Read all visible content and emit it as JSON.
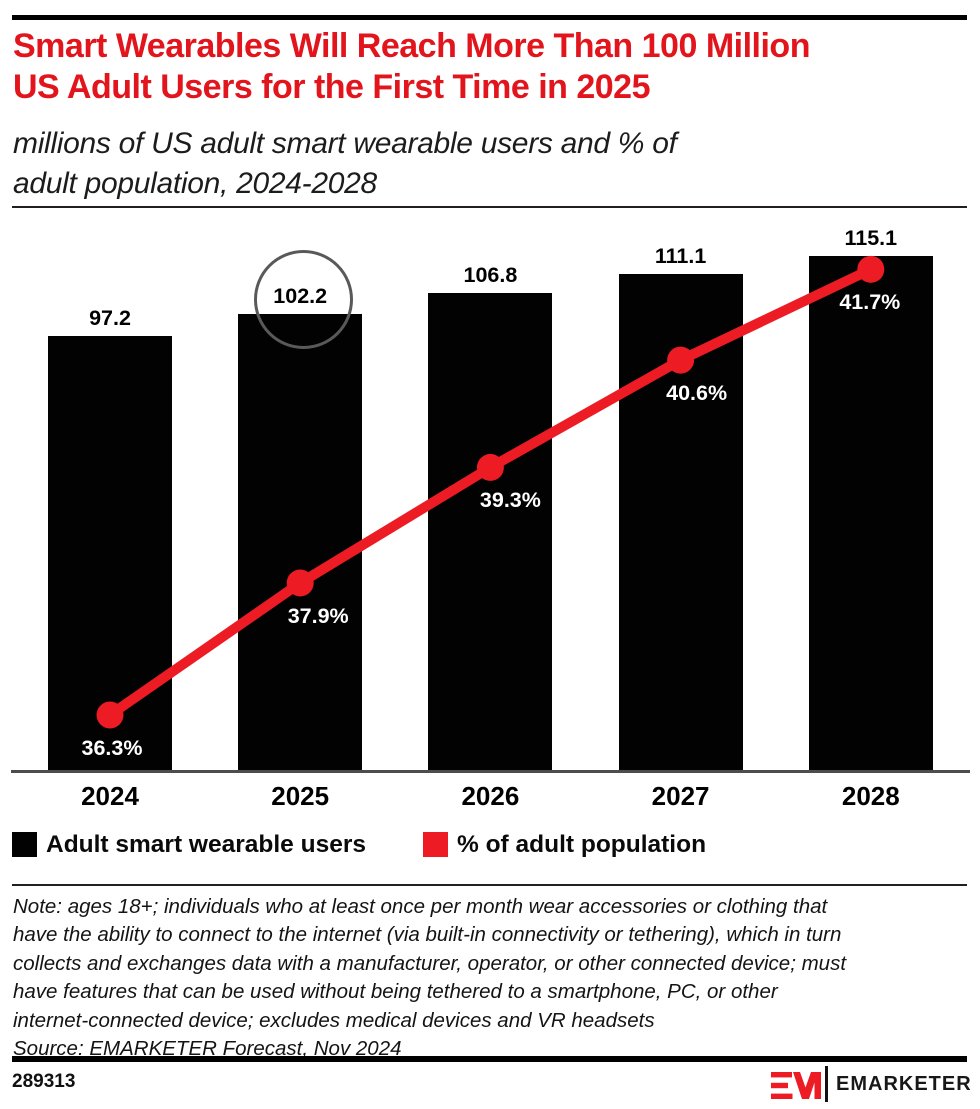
{
  "page": {
    "title_lines": [
      "Smart Wearables Will Reach More Than 100 Million",
      "US Adult Users for the First Time in 2025"
    ],
    "subtitle_lines": [
      "millions of US adult smart wearable users and % of",
      "adult population, 2024-2028"
    ],
    "note_lines": [
      "Note: ages 18+; individuals who at least once per month wear accessories or clothing that",
      "have the ability to connect to the internet (via built-in connectivity or tethering), which in turn",
      "collects and exchanges data with a manufacturer, operator, or other connected device; must",
      "have features that can be used without being tethered to a smartphone, PC, or other",
      "internet-connected device; excludes medical devices and VR headsets"
    ],
    "source": "Source: EMARKETER Forecast, Nov 2024",
    "footer_id": "289313",
    "brand": {
      "logogram": "EM",
      "wordmark": "EMARKETER"
    }
  },
  "legend": {
    "items": [
      {
        "label": "Adult smart wearable users",
        "color": "#020202"
      },
      {
        "label": "% of adult population",
        "color": "#ed1b24"
      }
    ]
  },
  "colors": {
    "title_red": "#e2141c",
    "series_red": "#ed1b24",
    "bar_black": "#020202",
    "annotation_gray": "#58595b"
  },
  "chart_data": {
    "type": "bar",
    "categories": [
      "2024",
      "2025",
      "2026",
      "2027",
      "2028"
    ],
    "series": [
      {
        "name": "Adult smart wearable users",
        "type": "bar",
        "color": "#020202",
        "values": [
          97.2,
          102.2,
          106.8,
          111.1,
          115.1
        ],
        "labels": [
          "97.2",
          "102.2",
          "106.8",
          "111.1",
          "115.1"
        ]
      },
      {
        "name": "% of adult population",
        "type": "line",
        "color": "#ed1b24",
        "values": [
          36.3,
          37.9,
          39.3,
          40.6,
          41.7
        ],
        "labels": [
          "36.3%",
          "37.9%",
          "39.3%",
          "40.6%",
          "41.7%"
        ]
      }
    ],
    "annotation": {
      "type": "circle",
      "category": "2025",
      "highlights_label": "102.2"
    },
    "xlabel": "",
    "ylabel": "",
    "ylim_bars": [
      0,
      124
    ],
    "grid": false,
    "legend_position": "bottom"
  }
}
